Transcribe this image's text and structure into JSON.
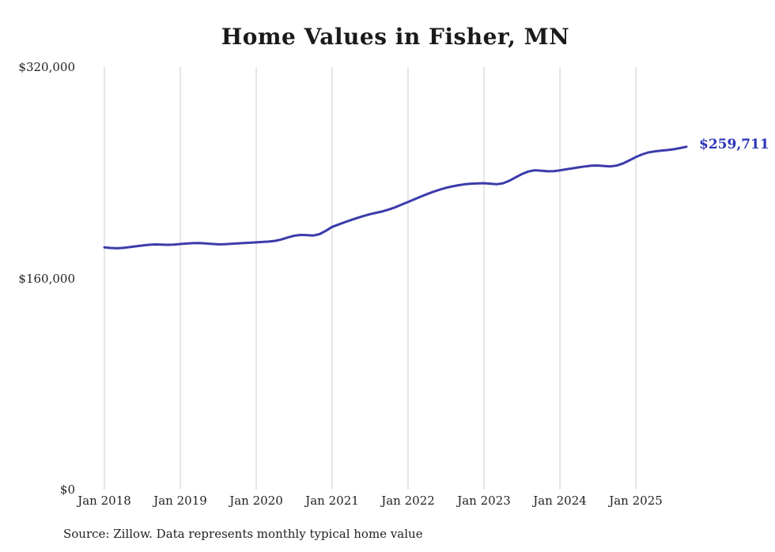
{
  "title": "Home Values in Fisher, MN",
  "source_note": "Source: Zillow. Data represents monthly typical home value",
  "end_label": "$259,711",
  "colors": {
    "line": "#3b3bab",
    "end_label": "#2d35b8",
    "grid": "#cccccc",
    "axis_text": "#222222",
    "title_text": "#1a1a1a",
    "background": "#ffffff"
  },
  "chart_data": {
    "type": "line",
    "title": "Home Values in Fisher, MN",
    "x_start": "Jan 2018",
    "x_interval": "monthly",
    "x_tick_labels": [
      "Jan 2018",
      "Jan 2019",
      "Jan 2020",
      "Jan 2021",
      "Jan 2022",
      "Jan 2023",
      "Jan 2024",
      "Jan 2025"
    ],
    "y_ticks": [
      320000,
      160000,
      0
    ],
    "y_tick_labels": [
      "$320,000",
      "$160,000",
      "$0"
    ],
    "ylim": [
      0,
      320000
    ],
    "grid": "vertical-only",
    "legend": "none",
    "latest_value": 259711,
    "series": [
      {
        "name": "Typical home value",
        "values": [
          183500,
          183000,
          182800,
          183100,
          183700,
          184300,
          184900,
          185400,
          185700,
          185600,
          185400,
          185600,
          186000,
          186400,
          186700,
          186800,
          186500,
          186100,
          185800,
          185900,
          186200,
          186500,
          186800,
          187000,
          187300,
          187600,
          187900,
          188400,
          189500,
          191000,
          192300,
          192900,
          192700,
          192400,
          193500,
          196000,
          199000,
          200800,
          202500,
          204200,
          205800,
          207300,
          208600,
          209700,
          210800,
          212200,
          213900,
          215900,
          217900,
          219900,
          221900,
          223800,
          225600,
          227200,
          228600,
          229700,
          230600,
          231300,
          231700,
          231900,
          232100,
          231700,
          231300,
          232000,
          233900,
          236500,
          239000,
          240900,
          241900,
          241600,
          241100,
          241200,
          241800,
          242600,
          243400,
          244100,
          244800,
          245400,
          245500,
          245100,
          244800,
          245500,
          247100,
          249400,
          251900,
          253900,
          255400,
          256200,
          256800,
          257200,
          257800,
          258700,
          259711
        ]
      }
    ]
  }
}
